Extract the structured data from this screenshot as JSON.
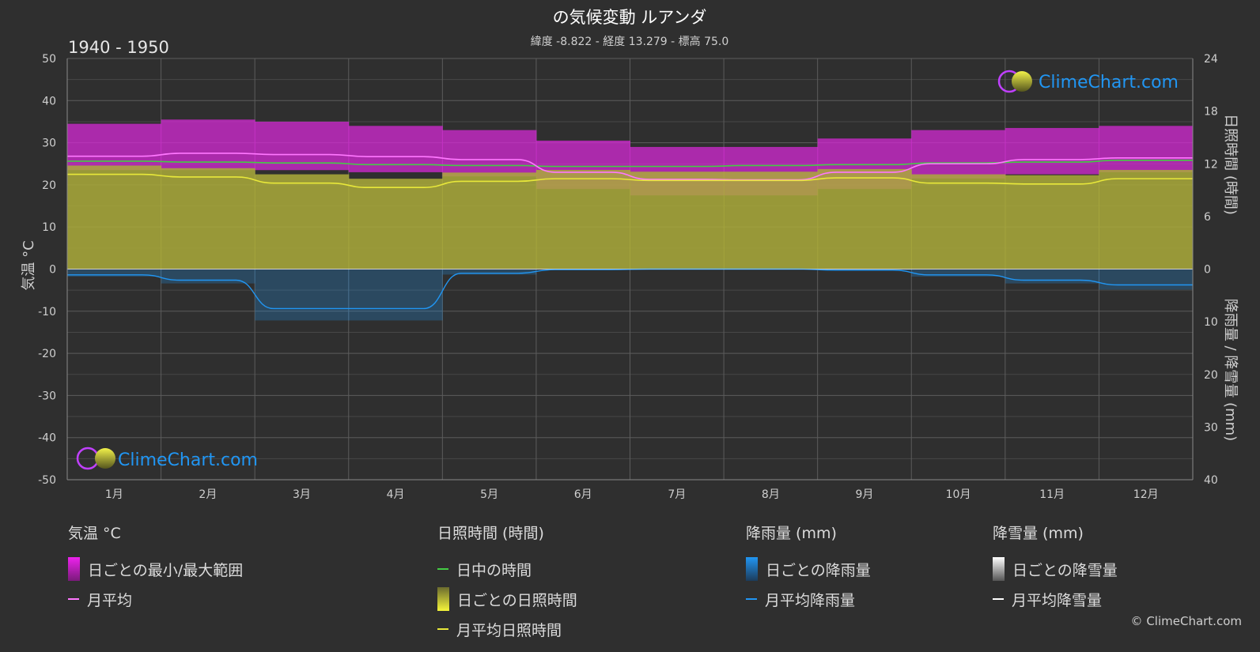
{
  "header": {
    "title": "の気候変動 ルアンダ",
    "subtitle": "緯度 -8.822 - 経度 13.279 - 標高 75.0",
    "period": "1940 - 1950"
  },
  "axes": {
    "left_label": "気温 °C",
    "right_top_label": "日照時間 (時間)",
    "right_bottom_label": "降雨量 / 降雪量 (mm)",
    "left_ticks": [
      "50",
      "40",
      "30",
      "20",
      "10",
      "0",
      "-10",
      "-20",
      "-30",
      "-40",
      "-50"
    ],
    "right_top_ticks": [
      "24",
      "18",
      "12",
      "6",
      "0"
    ],
    "right_bottom_ticks": [
      "10",
      "20",
      "30",
      "40"
    ]
  },
  "logo": {
    "text": "ClimeChart.com"
  },
  "copyright": "© ClimeChart.com",
  "colors": {
    "background": "#2f2f2f",
    "temp_range": "#d62ad6",
    "temp_avg": "#ff77ff",
    "daylight": "#44cc44",
    "sunshine_fill": "#aaaa3a",
    "sunshine_avg": "#e8e83a",
    "rain": "#2196f3",
    "snow": "#ffffff"
  },
  "legend": {
    "temperature": {
      "title": "気温 °C",
      "range_label": "日ごとの最小/最大範囲",
      "avg_label": "月平均"
    },
    "sunshine": {
      "title": "日照時間 (時間)",
      "daylight_label": "日中の時間",
      "daily_label": "日ごとの日照時間",
      "avg_label": "月平均日照時間"
    },
    "rain": {
      "title": "降雨量 (mm)",
      "daily_label": "日ごとの降雨量",
      "avg_label": "月平均降雨量"
    },
    "snow": {
      "title": "降雪量 (mm)",
      "daily_label": "日ごとの降雪量",
      "avg_label": "月平均降雪量"
    }
  },
  "chart_data": {
    "type": "area",
    "categories": [
      "1月",
      "2月",
      "3月",
      "4月",
      "5月",
      "6月",
      "7月",
      "8月",
      "9月",
      "10月",
      "11月",
      "12月"
    ],
    "temperature_axis": {
      "label": "気温 °C",
      "ylim": [
        -50,
        50
      ]
    },
    "sunshine_axis": {
      "label": "日照時間 (時間)",
      "ylim": [
        0,
        24
      ]
    },
    "precip_axis": {
      "label": "降雨量 / 降雪量 (mm)",
      "ylim": [
        0,
        40
      ]
    },
    "grid": true,
    "series": [
      {
        "name": "日ごとの最小/最大範囲 (max)",
        "values": [
          34.5,
          35.5,
          35,
          34,
          33,
          30.5,
          29,
          29,
          31,
          33,
          33.5,
          34
        ]
      },
      {
        "name": "日ごとの最小/最大範囲 (min)",
        "values": [
          23.5,
          23.5,
          23.5,
          23,
          22,
          19,
          17.5,
          17.5,
          19,
          21.5,
          22.5,
          23
        ]
      },
      {
        "name": "月平均",
        "values": [
          26.8,
          27.5,
          27.2,
          26.7,
          26,
          23,
          21.3,
          21.2,
          23,
          25,
          26,
          26.4
        ]
      },
      {
        "name": "日中の時間",
        "values": [
          12.3,
          12.2,
          12.1,
          11.9,
          11.8,
          11.7,
          11.7,
          11.8,
          11.9,
          12.1,
          12.2,
          12.4
        ]
      },
      {
        "name": "月平均日照時間",
        "values": [
          10.8,
          10.5,
          9.8,
          9.3,
          10,
          10.3,
          10.1,
          10.1,
          10.4,
          9.8,
          9.7,
          10.3
        ]
      },
      {
        "name": "月平均降雨量",
        "values": [
          1.1,
          2.1,
          7.5,
          7.5,
          0.8,
          0.1,
          0,
          0,
          0.2,
          1.1,
          2.1,
          3.0
        ]
      },
      {
        "name": "月平均降雪量",
        "values": [
          0,
          0,
          0,
          0,
          0,
          0,
          0,
          0,
          0,
          0,
          0,
          0
        ]
      }
    ]
  }
}
